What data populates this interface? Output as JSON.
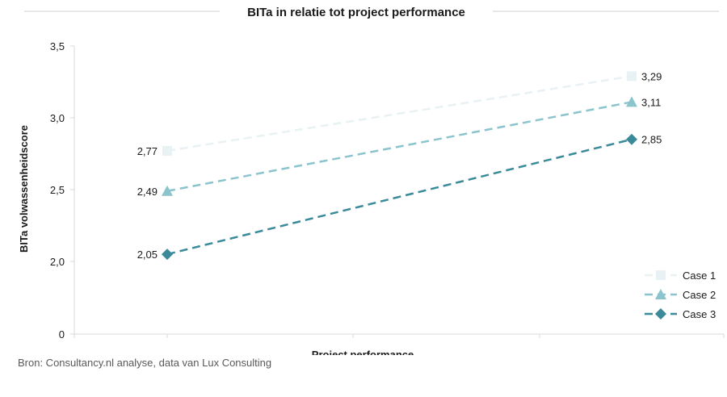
{
  "chart_data": {
    "type": "line",
    "title": "BITa in relatie tot project performance",
    "xlabel": "Project performance",
    "ylabel": "BITa volwassenheidscore",
    "x": [
      1,
      2
    ],
    "ylim": [
      0,
      3.5
    ],
    "y_break": [
      0.5,
      1.9
    ],
    "yticks": [
      {
        "value": 0,
        "label": "0"
      },
      {
        "value": 2.0,
        "label": "2,0"
      },
      {
        "value": 2.5,
        "label": "2,5"
      },
      {
        "value": 3.0,
        "label": "3,0"
      },
      {
        "value": 3.5,
        "label": "3,5"
      }
    ],
    "grid": false,
    "legend_position": "bottom-right",
    "series": [
      {
        "name": "Case 1",
        "values": [
          2.77,
          3.29
        ],
        "labels": [
          "2,77",
          "3,29"
        ],
        "color": "#e8f1f3",
        "marker": "square"
      },
      {
        "name": "Case 2",
        "values": [
          2.49,
          3.11
        ],
        "labels": [
          "2,49",
          "3,11"
        ],
        "color": "#8cc4ce",
        "marker": "triangle"
      },
      {
        "name": "Case 3",
        "values": [
          2.05,
          2.85
        ],
        "labels": [
          "2,05",
          "2,85"
        ],
        "color": "#3b8a9a",
        "marker": "diamond"
      }
    ]
  },
  "source_text": "Bron: Consultancy.nl analyse,  data van Lux Consulting"
}
